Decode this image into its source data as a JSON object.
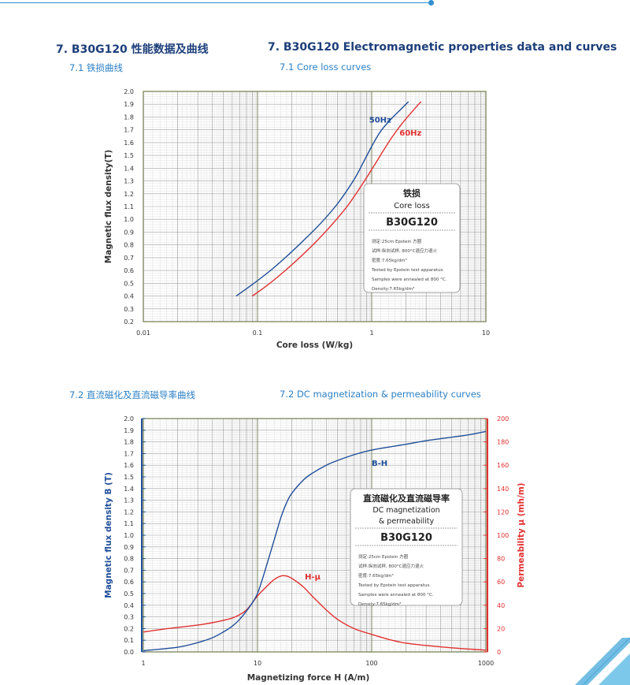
{
  "headings": {
    "section_cn": "7. B30G120 性能数据及曲线",
    "section_en": "7. B30G120  Electromagnetic properties data and curves",
    "sub1_cn": "7.1 铁损曲线",
    "sub1_en": "7.1 Core loss curves",
    "sub2_cn": "7.2 直流磁化及直流磁导率曲线",
    "sub2_en": "7.2 DC magnetization & permeability curves"
  },
  "chart_data": [
    {
      "type": "line",
      "xscale": "log",
      "xlim": [
        0.01,
        10
      ],
      "ylim": [
        0.2,
        2.0
      ],
      "xticks": [
        "0.01",
        "0.1",
        "1",
        "10"
      ],
      "yticks": [
        "0.2",
        "0.3",
        "0.4",
        "0.5",
        "0.6",
        "0.7",
        "0.8",
        "0.9",
        "1.0",
        "1.1",
        "1.2",
        "1.3",
        "1.4",
        "1.5",
        "1.6",
        "1.7",
        "1.8",
        "1.9",
        "2.0"
      ],
      "xlabel": "Core loss (W/kg)",
      "ylabel": "Magnetic flux density(T)",
      "grid": true,
      "series": [
        {
          "name": "50Hz",
          "color": "#1f4e99",
          "x": [
            0.065,
            0.09,
            0.13,
            0.18,
            0.25,
            0.35,
            0.5,
            0.7,
            0.85,
            1.0,
            1.2,
            1.5,
            1.8,
            2.1
          ],
          "y": [
            0.4,
            0.49,
            0.6,
            0.71,
            0.83,
            0.96,
            1.12,
            1.31,
            1.45,
            1.57,
            1.69,
            1.79,
            1.86,
            1.92
          ]
        },
        {
          "name": "60Hz",
          "color": "#e23030",
          "x": [
            0.09,
            0.12,
            0.17,
            0.24,
            0.33,
            0.45,
            0.62,
            0.85,
            1.05,
            1.25,
            1.5,
            1.85,
            2.25,
            2.7
          ],
          "y": [
            0.4,
            0.48,
            0.59,
            0.71,
            0.83,
            0.96,
            1.11,
            1.29,
            1.42,
            1.53,
            1.64,
            1.75,
            1.84,
            1.92
          ]
        }
      ],
      "legend_box": {
        "title_cn": "铁损",
        "title_en": "Core loss",
        "grade": "B30G120",
        "notes": [
          "测定:25cm Epstein 方圈",
          "试样:纵向试样, 800°C退应力退火",
          "密度:7.65kg/dm³",
          "Tested by Epstein test apparatus.",
          "Samples were annealed at 800 °C.",
          "Density:7.65kg/dm³"
        ]
      }
    },
    {
      "type": "line",
      "xscale": "log",
      "xlim": [
        1,
        1000
      ],
      "ylim": [
        0,
        2.0
      ],
      "y2lim": [
        0,
        200
      ],
      "xticks": [
        "1",
        "10",
        "100",
        "1000"
      ],
      "yticks": [
        "0.0",
        "0.1",
        "0.2",
        "0.3",
        "0.4",
        "0.5",
        "0.6",
        "0.7",
        "0.8",
        "0.9",
        "1.0",
        "1.1",
        "1.2",
        "1.3",
        "1.4",
        "1.5",
        "1.6",
        "1.7",
        "1.8",
        "1.9",
        "2.0"
      ],
      "y2ticks": [
        "0",
        "20",
        "40",
        "60",
        "80",
        "100",
        "120",
        "140",
        "160",
        "180",
        "200"
      ],
      "xlabel": "Magnetizing force H (A/m)",
      "ylabel": "Magnetic flux density B (T)",
      "y2label": "Permeability μ (mh/m)",
      "grid": true,
      "series": [
        {
          "name": "B-H",
          "color": "#1f4e99",
          "axis": "left",
          "x": [
            1,
            2,
            3,
            4,
            5,
            6,
            7,
            8,
            9,
            10,
            11,
            12,
            14,
            16,
            18,
            20,
            25,
            30,
            40,
            50,
            70,
            100,
            150,
            200,
            300,
            500,
            700,
            1000
          ],
          "y": [
            0.01,
            0.04,
            0.08,
            0.12,
            0.17,
            0.22,
            0.28,
            0.35,
            0.42,
            0.5,
            0.62,
            0.74,
            0.96,
            1.15,
            1.28,
            1.36,
            1.47,
            1.53,
            1.6,
            1.64,
            1.69,
            1.73,
            1.76,
            1.78,
            1.81,
            1.84,
            1.86,
            1.89
          ]
        },
        {
          "name": "H-μ",
          "color": "#e23030",
          "axis": "right",
          "x": [
            1,
            1.5,
            2,
            3,
            4,
            5,
            6,
            7,
            8,
            9,
            10,
            12,
            14,
            16,
            18,
            20,
            25,
            30,
            40,
            50,
            70,
            100,
            150,
            200,
            300,
            500,
            700,
            1000
          ],
          "y": [
            17,
            19.5,
            21,
            23,
            25,
            27,
            29,
            32,
            36,
            42,
            48,
            56,
            62,
            65,
            65,
            63,
            56,
            48,
            36,
            28,
            20,
            15,
            10,
            7.5,
            5.5,
            3.5,
            2.5,
            1.5
          ]
        }
      ],
      "legend_box": {
        "title_cn": "直流磁化及直流磁导率",
        "title_en1": "DC magnetization",
        "title_en2": "& permeability",
        "grade": "B30G120",
        "notes": [
          "测定:25cm Epstein 方圈",
          "试样:纵向试样, 800°C退应力退火",
          "密度:7.65kg/dm³",
          "Tested by Epstein test apparatus.",
          "Samples were annealed at 800 °C.",
          "Density:7.65kg/dm³"
        ]
      }
    }
  ]
}
